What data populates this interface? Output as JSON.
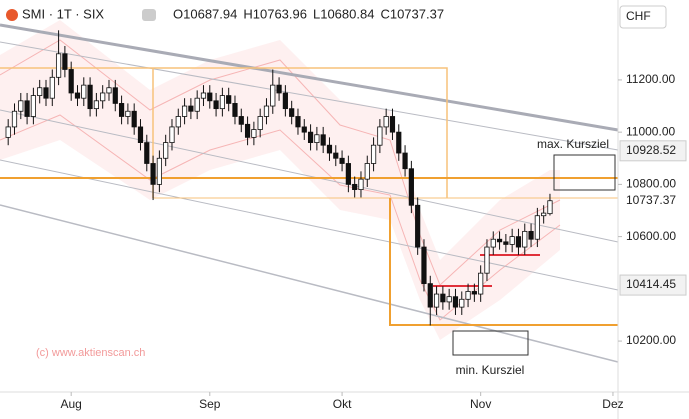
{
  "header": {
    "symbol": "SMI · 1T · SIX",
    "ohlc_labels": [
      "O",
      "H",
      "L",
      "C"
    ]
  },
  "chart_data": {
    "type": "candlestick",
    "currency": "CHF",
    "watermark": "(c) www.aktienscan.ch",
    "open": [
      10980,
      11020,
      11080,
      11120,
      11060,
      11140,
      11170,
      11130,
      11210,
      11300,
      11240,
      11150,
      11130,
      11180,
      11090,
      11120,
      11150,
      11170,
      11110,
      11060,
      11080,
      11020,
      10960,
      10880,
      10800,
      10900,
      10960,
      11020,
      11060,
      11100,
      11080,
      11130,
      11150,
      11120,
      11090,
      11140,
      11110,
      11060,
      11030,
      10980,
      11010,
      11060,
      11100,
      11180,
      11150,
      11090,
      11060,
      11020,
      11000,
      10960,
      10990,
      10950,
      10920,
      10900,
      10880,
      10800,
      10780,
      10820,
      10880,
      10950,
      11020,
      11060,
      11000,
      10920,
      10860,
      10720,
      10560,
      10420,
      10330,
      10380,
      10350,
      10370,
      10330,
      10360,
      10390,
      10380,
      10460,
      10560,
      10590,
      10580,
      10570,
      10600,
      10560,
      10620,
      10590,
      10680,
      10687.94
    ],
    "high": [
      11050,
      11110,
      11150,
      11150,
      11170,
      11200,
      11200,
      11240,
      11390,
      11330,
      11270,
      11180,
      11210,
      11210,
      11150,
      11180,
      11200,
      11200,
      11140,
      11110,
      11110,
      11050,
      10990,
      10910,
      10930,
      10990,
      11050,
      11090,
      11130,
      11130,
      11160,
      11180,
      11180,
      11150,
      11170,
      11170,
      11140,
      11090,
      11060,
      11040,
      11090,
      11130,
      11240,
      11210,
      11180,
      11120,
      11090,
      11050,
      11030,
      11020,
      11020,
      10980,
      10950,
      10930,
      10910,
      10830,
      10850,
      10910,
      10980,
      11050,
      11090,
      11090,
      11030,
      10950,
      10890,
      10750,
      10590,
      10450,
      10410,
      10410,
      10400,
      10400,
      10390,
      10420,
      10420,
      10490,
      10590,
      10620,
      10620,
      10610,
      10630,
      10630,
      10650,
      10650,
      10710,
      10720,
      10763.96
    ],
    "low": [
      10950,
      10990,
      11050,
      11030,
      11030,
      11110,
      11100,
      11100,
      11180,
      11210,
      11120,
      11100,
      11100,
      11060,
      11060,
      11090,
      11120,
      11080,
      11030,
      11030,
      10990,
      10930,
      10850,
      10740,
      10770,
      10870,
      10930,
      10990,
      11030,
      11050,
      11050,
      11100,
      11090,
      11060,
      11060,
      11080,
      11030,
      11000,
      10950,
      10950,
      10980,
      11030,
      11070,
      11120,
      11060,
      11030,
      10990,
      10970,
      10930,
      10930,
      10920,
      10890,
      10870,
      10850,
      10770,
      10750,
      10750,
      10790,
      10850,
      10920,
      10990,
      10970,
      10890,
      10830,
      10690,
      10530,
      10390,
      10260,
      10300,
      10320,
      10320,
      10300,
      10300,
      10330,
      10350,
      10350,
      10430,
      10530,
      10550,
      10540,
      10540,
      10530,
      10530,
      10560,
      10560,
      10650,
      10680.84
    ],
    "close": [
      11020,
      11080,
      11120,
      11060,
      11140,
      11170,
      11130,
      11210,
      11300,
      11240,
      11150,
      11130,
      11180,
      11090,
      11120,
      11150,
      11170,
      11110,
      11060,
      11080,
      11020,
      10960,
      10880,
      10800,
      10900,
      10960,
      11020,
      11060,
      11100,
      11080,
      11130,
      11150,
      11120,
      11090,
      11140,
      11110,
      11060,
      11030,
      10980,
      11010,
      11060,
      11100,
      11180,
      11150,
      11090,
      11060,
      11020,
      11000,
      10960,
      10990,
      10950,
      10920,
      10900,
      10880,
      10800,
      10780,
      10820,
      10880,
      10950,
      11020,
      11060,
      11000,
      10920,
      10860,
      10720,
      10560,
      10420,
      10330,
      10380,
      10350,
      10370,
      10330,
      10360,
      10390,
      10380,
      10460,
      10560,
      10590,
      10580,
      10570,
      10600,
      10560,
      10620,
      10590,
      10680,
      10690,
      10737.37
    ],
    "up_color": "#ffffff",
    "down_color": "#111111",
    "ylim": [
      10005,
      11506
    ],
    "yticks": [
      {
        "value": 10200,
        "label": "10200.00"
      },
      {
        "value": 10600,
        "label": "10600.00"
      },
      {
        "value": 10800,
        "label": "10800.00"
      },
      {
        "value": 11000,
        "label": "11000.00"
      },
      {
        "value": 11200,
        "label": "11200.00"
      }
    ],
    "xlim": [
      -1.3,
      96.8
    ],
    "xticks": [
      {
        "value": 10,
        "label": "Aug"
      },
      {
        "value": 32,
        "label": "Sep"
      },
      {
        "value": 53,
        "label": "Okt"
      },
      {
        "value": 75,
        "label": "Nov"
      },
      {
        "value": 96,
        "label": "Dez"
      }
    ],
    "price_labels": [
      10928.52,
      10414.45
    ],
    "annotations": [
      "max. Kursziel",
      "min. Kursziel"
    ]
  }
}
